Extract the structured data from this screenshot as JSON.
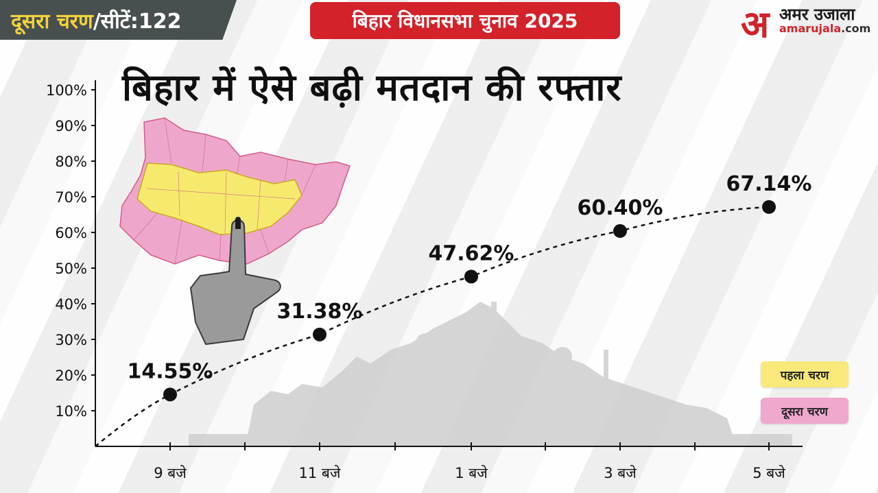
{
  "header": {
    "phase_prefix": "दूसरा चरण",
    "phase_suffix": "/सीटें:122",
    "event_title": "बिहार विधानसभा चुनाव 2025",
    "logo_letter": "अ",
    "logo_name": "अमर उजाला",
    "logo_domain_main": "amarujala",
    "logo_domain_ext": ".com"
  },
  "colors": {
    "brand_red": "#d3222a",
    "phase_tag_bg": "#474f4f",
    "phase1_yellow": "#f8e97a",
    "phase2_pink": "#f1a8cd"
  },
  "chart_data": {
    "type": "line",
    "title": "बिहार में ऐसे बढ़ी मतदान की रफ्तार",
    "categories": [
      "9 बजे",
      "11 बजे",
      "1 बजे",
      "3 बजे",
      "5 बजे"
    ],
    "values": [
      14.55,
      31.38,
      47.62,
      60.4,
      67.14
    ],
    "data_labels": [
      "14.55%",
      "31.38%",
      "47.62%",
      "60.40%",
      "67.14%"
    ],
    "y_ticks": [
      "10%",
      "20%",
      "30%",
      "40%",
      "50%",
      "60%",
      "70%",
      "80%",
      "90%",
      "100%"
    ],
    "ylim": [
      0,
      100
    ],
    "line_style": "dashed",
    "grid": false,
    "legend_position": "bottom-right",
    "legend": [
      {
        "label": "पहला चरण",
        "color": "#f8e97a"
      },
      {
        "label": "दूसरा चरण",
        "color": "#f1a8cd"
      }
    ]
  },
  "illustration": {
    "map_icon": "bihar-map-icon",
    "finger_icon": "inked-finger-icon",
    "crowd_icon": "crowd-silhouette-icon"
  }
}
